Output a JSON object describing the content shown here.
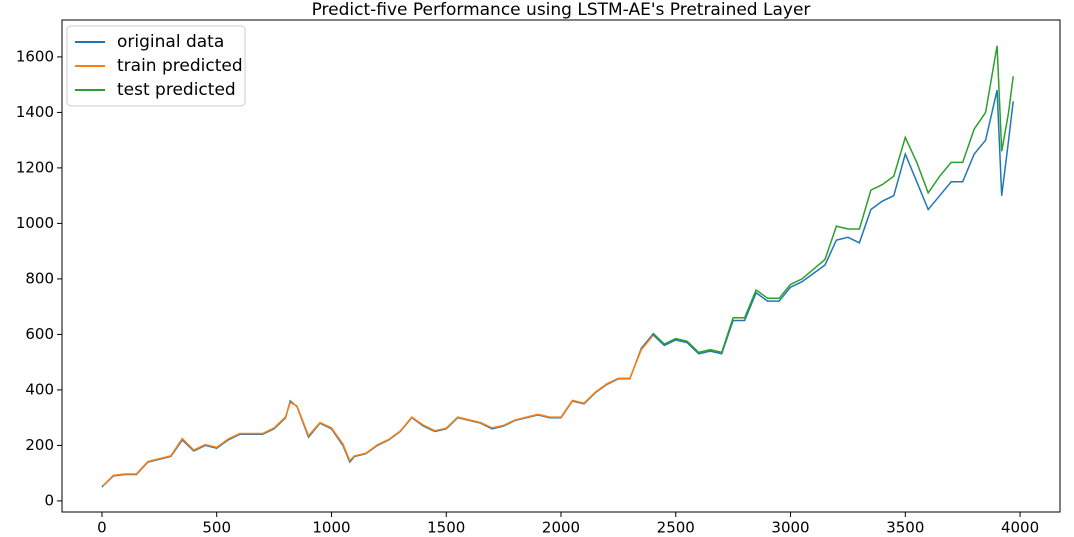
{
  "chart_data": {
    "type": "line",
    "title": "Predict-five Performance using LSTM-AE's Pretrained Layer",
    "xlim": [
      -174,
      4174
    ],
    "ylim": [
      -40,
      1733
    ],
    "xticks": [
      0,
      500,
      1000,
      1500,
      2000,
      2500,
      3000,
      3500,
      4000
    ],
    "yticks": [
      0,
      200,
      400,
      600,
      800,
      1000,
      1200,
      1400,
      1600
    ],
    "legend": "upper left",
    "series": [
      {
        "name": "original data",
        "color": "#1f77b4",
        "x": [
          0,
          50,
          100,
          150,
          200,
          250,
          300,
          350,
          400,
          450,
          500,
          550,
          600,
          650,
          700,
          750,
          800,
          820,
          850,
          900,
          950,
          1000,
          1050,
          1080,
          1100,
          1150,
          1200,
          1250,
          1300,
          1350,
          1400,
          1450,
          1500,
          1550,
          1600,
          1650,
          1700,
          1750,
          1800,
          1850,
          1900,
          1950,
          2000,
          2050,
          2100,
          2150,
          2200,
          2250,
          2300,
          2350,
          2400,
          2450,
          2500,
          2550,
          2600,
          2650,
          2700,
          2750,
          2800,
          2850,
          2900,
          2950,
          3000,
          3050,
          3100,
          3150,
          3200,
          3250,
          3300,
          3350,
          3400,
          3450,
          3500,
          3550,
          3600,
          3650,
          3700,
          3750,
          3800,
          3850,
          3900,
          3920,
          3950,
          3970
        ],
        "values": [
          50,
          90,
          95,
          95,
          140,
          150,
          160,
          220,
          180,
          200,
          190,
          220,
          240,
          240,
          240,
          260,
          300,
          360,
          340,
          230,
          280,
          260,
          200,
          140,
          160,
          170,
          200,
          220,
          250,
          300,
          270,
          250,
          260,
          300,
          290,
          280,
          260,
          270,
          290,
          300,
          310,
          300,
          300,
          360,
          350,
          390,
          420,
          440,
          440,
          550,
          600,
          560,
          580,
          570,
          530,
          540,
          530,
          650,
          650,
          750,
          720,
          720,
          770,
          790,
          820,
          850,
          940,
          950,
          930,
          1050,
          1080,
          1100,
          1250,
          1150,
          1050,
          1100,
          1150,
          1150,
          1250,
          1300,
          1480,
          1100,
          1300,
          1440
        ]
      },
      {
        "name": "train predicted",
        "color": "#ff7f0e",
        "x": [
          5,
          50,
          100,
          150,
          200,
          250,
          300,
          350,
          400,
          450,
          500,
          550,
          600,
          650,
          700,
          750,
          800,
          820,
          850,
          900,
          950,
          1000,
          1050,
          1080,
          1100,
          1150,
          1200,
          1250,
          1300,
          1350,
          1400,
          1450,
          1500,
          1550,
          1600,
          1650,
          1700,
          1750,
          1800,
          1850,
          1900,
          1950,
          2000,
          2050,
          2100,
          2150,
          2200,
          2250,
          2300,
          2350,
          2400
        ],
        "values": [
          55,
          92,
          97,
          97,
          142,
          152,
          162,
          225,
          183,
          203,
          193,
          223,
          243,
          243,
          243,
          263,
          303,
          355,
          342,
          235,
          282,
          263,
          205,
          145,
          162,
          172,
          202,
          222,
          252,
          302,
          273,
          253,
          262,
          302,
          292,
          282,
          263,
          272,
          292,
          302,
          312,
          302,
          302,
          362,
          352,
          392,
          422,
          442,
          442,
          545,
          595
        ]
      },
      {
        "name": "test predicted",
        "color": "#2ca02c",
        "x": [
          2400,
          2450,
          2500,
          2550,
          2600,
          2650,
          2700,
          2750,
          2800,
          2850,
          2900,
          2950,
          3000,
          3050,
          3100,
          3150,
          3200,
          3250,
          3300,
          3350,
          3400,
          3450,
          3500,
          3550,
          3600,
          3650,
          3700,
          3750,
          3800,
          3850,
          3900,
          3920,
          3950,
          3970
        ],
        "values": [
          605,
          565,
          585,
          575,
          535,
          545,
          535,
          660,
          660,
          760,
          730,
          730,
          780,
          800,
          835,
          870,
          990,
          980,
          980,
          1120,
          1140,
          1170,
          1310,
          1220,
          1110,
          1170,
          1220,
          1220,
          1340,
          1400,
          1640,
          1260,
          1400,
          1530
        ]
      }
    ]
  }
}
